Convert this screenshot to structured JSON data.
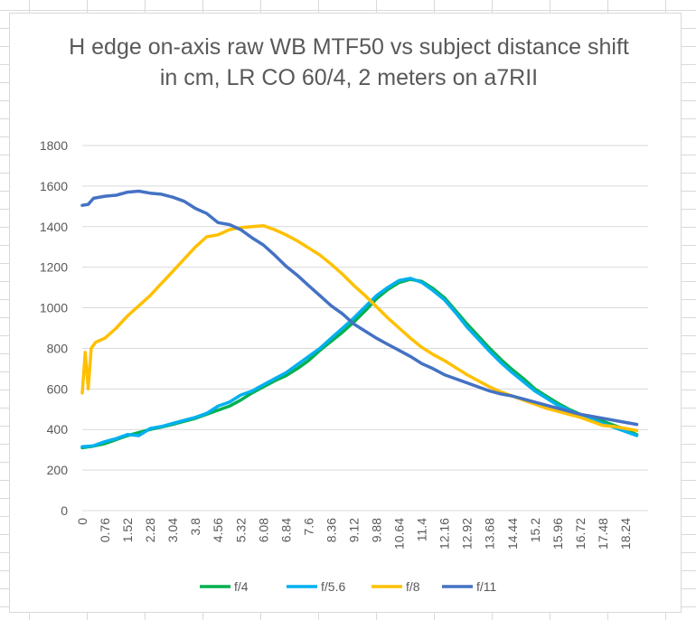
{
  "chart_data": {
    "type": "line",
    "title": "H edge on-axis raw WB MTF50 vs subject distance shift in cm, LR CO 60/4, 2 meters on a7RII",
    "xlabel": "",
    "ylabel": "",
    "ylim": [
      0,
      1800
    ],
    "yticks": [
      0,
      200,
      400,
      600,
      800,
      1000,
      1200,
      1400,
      1600,
      1800
    ],
    "xticks": [
      "0",
      "0.76",
      "1.52",
      "2.28",
      "3.04",
      "3.8",
      "4.56",
      "5.32",
      "6.08",
      "6.84",
      "7.6",
      "8.36",
      "9.12",
      "9.88",
      "10.64",
      "11.4",
      "12.16",
      "12.92",
      "13.68",
      "14.44",
      "15.2",
      "15.96",
      "16.72",
      "17.48",
      "18.24"
    ],
    "xlim": [
      0,
      19.0
    ],
    "grid": "horizontal",
    "legend_position": "bottom",
    "series": [
      {
        "name": "f/4",
        "color": "#00b050",
        "x": [
          0,
          0.38,
          0.76,
          1.14,
          1.52,
          1.9,
          2.28,
          2.66,
          3.04,
          3.42,
          3.8,
          4.18,
          4.56,
          4.94,
          5.32,
          5.7,
          6.08,
          6.46,
          6.84,
          7.22,
          7.6,
          7.98,
          8.36,
          8.74,
          9.12,
          9.5,
          9.88,
          10.26,
          10.64,
          11.02,
          11.4,
          11.78,
          12.16,
          12.54,
          12.92,
          13.3,
          13.68,
          14.06,
          14.44,
          14.82,
          15.2,
          15.58,
          15.96,
          16.34,
          16.72,
          17.1,
          17.48,
          17.86,
          18.24,
          18.62
        ],
        "y": [
          310,
          318,
          330,
          350,
          370,
          385,
          400,
          412,
          425,
          440,
          455,
          475,
          495,
          515,
          545,
          580,
          610,
          640,
          665,
          700,
          740,
          790,
          835,
          880,
          930,
          985,
          1045,
          1090,
          1125,
          1140,
          1130,
          1095,
          1050,
          985,
          920,
          860,
          800,
          745,
          695,
          650,
          600,
          565,
          530,
          500,
          475,
          455,
          440,
          420,
          400,
          375
        ]
      },
      {
        "name": "f/5.6",
        "color": "#00b0f0",
        "x": [
          0,
          0.38,
          0.76,
          1.14,
          1.52,
          1.9,
          2.28,
          2.66,
          3.04,
          3.42,
          3.8,
          4.18,
          4.56,
          4.94,
          5.32,
          5.7,
          6.08,
          6.46,
          6.84,
          7.22,
          7.6,
          7.98,
          8.36,
          8.74,
          9.12,
          9.5,
          9.88,
          10.26,
          10.64,
          11.02,
          11.4,
          11.78,
          12.16,
          12.54,
          12.92,
          13.3,
          13.68,
          14.06,
          14.44,
          14.82,
          15.2,
          15.58,
          15.96,
          16.34,
          16.72,
          17.1,
          17.48,
          17.86,
          18.24,
          18.62
        ],
        "y": [
          315,
          320,
          340,
          355,
          375,
          370,
          405,
          415,
          430,
          445,
          460,
          480,
          515,
          535,
          570,
          590,
          620,
          650,
          680,
          720,
          760,
          800,
          850,
          900,
          950,
          1005,
          1060,
          1100,
          1135,
          1145,
          1125,
          1085,
          1040,
          975,
          905,
          845,
          785,
          730,
          680,
          635,
          590,
          555,
          520,
          495,
          470,
          450,
          430,
          410,
          390,
          370
        ]
      },
      {
        "name": "f/8",
        "color": "#ffc000",
        "x": [
          0,
          0.1,
          0.2,
          0.3,
          0.45,
          0.6,
          0.76,
          1.14,
          1.52,
          1.9,
          2.28,
          2.66,
          3.04,
          3.42,
          3.8,
          4.18,
          4.56,
          4.94,
          5.32,
          5.7,
          6.08,
          6.46,
          6.84,
          7.22,
          7.6,
          7.98,
          8.36,
          8.74,
          9.12,
          9.5,
          9.88,
          10.26,
          10.64,
          11.02,
          11.4,
          11.78,
          12.16,
          12.54,
          12.92,
          13.3,
          13.68,
          14.06,
          14.44,
          14.82,
          15.2,
          15.58,
          15.96,
          16.34,
          16.72,
          17.1,
          17.48,
          17.86,
          18.24,
          18.62
        ],
        "y": [
          580,
          780,
          600,
          800,
          830,
          840,
          850,
          900,
          960,
          1010,
          1060,
          1120,
          1180,
          1240,
          1300,
          1350,
          1360,
          1385,
          1395,
          1400,
          1405,
          1385,
          1360,
          1330,
          1295,
          1260,
          1215,
          1165,
          1110,
          1060,
          1005,
          950,
          900,
          850,
          805,
          770,
          740,
          705,
          670,
          640,
          610,
          585,
          565,
          545,
          525,
          505,
          490,
          475,
          460,
          440,
          420,
          415,
          405,
          395
        ]
      },
      {
        "name": "f/11",
        "color": "#4472c4",
        "x": [
          0,
          0.2,
          0.38,
          0.76,
          1.14,
          1.52,
          1.9,
          2.28,
          2.66,
          3.04,
          3.42,
          3.8,
          4.18,
          4.56,
          4.94,
          5.32,
          5.7,
          6.08,
          6.46,
          6.84,
          7.22,
          7.6,
          7.98,
          8.36,
          8.74,
          9.12,
          9.5,
          9.88,
          10.26,
          10.64,
          11.02,
          11.4,
          11.78,
          12.16,
          12.54,
          12.92,
          13.3,
          13.68,
          14.06,
          14.44,
          14.82,
          15.2,
          15.58,
          15.96,
          16.34,
          16.72,
          17.1,
          17.48,
          17.86,
          18.24,
          18.62
        ],
        "y": [
          1505,
          1510,
          1540,
          1550,
          1555,
          1570,
          1575,
          1565,
          1560,
          1545,
          1525,
          1490,
          1465,
          1420,
          1410,
          1385,
          1345,
          1310,
          1260,
          1205,
          1160,
          1110,
          1060,
          1010,
          970,
          920,
          885,
          850,
          820,
          790,
          760,
          725,
          700,
          670,
          650,
          630,
          610,
          590,
          575,
          565,
          550,
          535,
          520,
          505,
          490,
          475,
          465,
          455,
          445,
          435,
          425
        ]
      }
    ]
  }
}
